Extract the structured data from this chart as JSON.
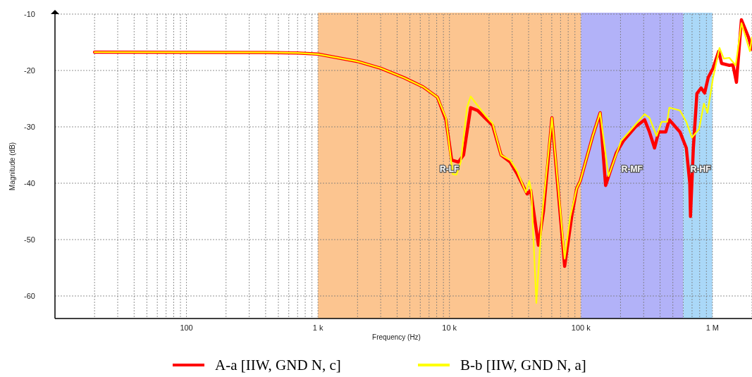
{
  "chart_data": {
    "type": "line",
    "xlabel": "Frequency (Hz)",
    "ylabel": "Magnitude (dB)",
    "log": "x",
    "xlim": [
      10,
      2000000
    ],
    "ylim": [
      -64,
      -10
    ],
    "xticks": [
      {
        "value": 20,
        "label": null
      },
      {
        "value": 30,
        "label": null
      },
      {
        "value": 40,
        "label": null
      },
      {
        "value": 50,
        "label": null
      },
      {
        "value": 60,
        "label": null
      },
      {
        "value": 70,
        "label": null
      },
      {
        "value": 80,
        "label": null
      },
      {
        "value": 90,
        "label": null
      },
      {
        "value": 100,
        "label": "100"
      },
      {
        "value": 200,
        "label": null
      },
      {
        "value": 300,
        "label": null
      },
      {
        "value": 400,
        "label": null
      },
      {
        "value": 500,
        "label": null
      },
      {
        "value": 600,
        "label": null
      },
      {
        "value": 700,
        "label": null
      },
      {
        "value": 800,
        "label": null
      },
      {
        "value": 900,
        "label": null
      },
      {
        "value": 1000,
        "label": "1 k"
      },
      {
        "value": 2000,
        "label": null
      },
      {
        "value": 3000,
        "label": null
      },
      {
        "value": 4000,
        "label": null
      },
      {
        "value": 5000,
        "label": null
      },
      {
        "value": 6000,
        "label": null
      },
      {
        "value": 7000,
        "label": null
      },
      {
        "value": 8000,
        "label": null
      },
      {
        "value": 9000,
        "label": null
      },
      {
        "value": 10000,
        "label": "10 k"
      },
      {
        "value": 20000,
        "label": null
      },
      {
        "value": 30000,
        "label": null
      },
      {
        "value": 40000,
        "label": null
      },
      {
        "value": 50000,
        "label": null
      },
      {
        "value": 60000,
        "label": null
      },
      {
        "value": 70000,
        "label": null
      },
      {
        "value": 80000,
        "label": null
      },
      {
        "value": 90000,
        "label": null
      },
      {
        "value": 100000,
        "label": "100 k"
      },
      {
        "value": 200000,
        "label": null
      },
      {
        "value": 300000,
        "label": null
      },
      {
        "value": 400000,
        "label": null
      },
      {
        "value": 500000,
        "label": null
      },
      {
        "value": 600000,
        "label": null
      },
      {
        "value": 700000,
        "label": null
      },
      {
        "value": 800000,
        "label": null
      },
      {
        "value": 900000,
        "label": null
      },
      {
        "value": 1000000,
        "label": "1 M"
      },
      {
        "value": 2000000,
        "label": null
      }
    ],
    "yticks": [
      -10,
      -20,
      -30,
      -40,
      -50,
      -60
    ],
    "grid": true,
    "legend": "bottom",
    "line_style": "solid",
    "bands": [
      {
        "axis": "x",
        "from": 1000,
        "to": 100000,
        "label": "R-LF",
        "color": "#fcc590"
      },
      {
        "axis": "x",
        "from": 100000,
        "to": 600000,
        "label": "R-MF",
        "color": "#b2b2f8"
      },
      {
        "axis": "x",
        "from": 600000,
        "to": 1000000,
        "label": "R-HF",
        "color": "#aad8f8"
      }
    ],
    "series": [
      {
        "name": "A-a [IIW, GND N, c]",
        "color": "#ff0000",
        "x": [
          20,
          400,
          700,
          1000,
          2000,
          3000,
          4530,
          6300,
          8100,
          9400,
          10400,
          11700,
          12800,
          14500,
          16400,
          18600,
          21300,
          24700,
          29000,
          32800,
          39000,
          41500,
          47500,
          51900,
          60200,
          75200,
          85100,
          92900,
          98900,
          123000,
          140000,
          154000,
          186000,
          210000,
          260000,
          305000,
          332000,
          363000,
          390000,
          442000,
          470000,
          566000,
          633000,
          673000,
          681000,
          716000,
          762000,
          820000,
          873000,
          929000,
          1012000,
          1117000,
          1175000,
          1346000,
          1432000,
          1523000,
          1662000,
          1880000,
          1995000
        ],
        "values": [
          -16.75,
          -16.8,
          -16.9,
          -17.1,
          -18.4,
          -19.6,
          -21.3,
          -22.9,
          -24.75,
          -28.75,
          -35.9,
          -36.25,
          -35,
          -26.6,
          -27.1,
          -28.4,
          -29.75,
          -35,
          -36.25,
          -38.4,
          -41.9,
          -41.25,
          -51,
          -45,
          -28.4,
          -54.75,
          -45.9,
          -40.9,
          -39.6,
          -31.6,
          -27.5,
          -40.4,
          -34.6,
          -32.5,
          -30,
          -28.75,
          -30.9,
          -33.75,
          -30.9,
          -30.9,
          -28.75,
          -30.9,
          -33.75,
          -40,
          -45.9,
          -33.75,
          -24.1,
          -23.1,
          -24,
          -21.25,
          -19.6,
          -16.6,
          -18.75,
          -19.1,
          -19,
          -22.1,
          -11,
          -14.1,
          -16.25
        ]
      },
      {
        "name": "B-b [IIW, GND N, a]",
        "color": "#ffff00",
        "x": [
          20,
          400,
          700,
          1000,
          2000,
          3000,
          4530,
          6300,
          8100,
          9400,
          10600,
          11300,
          12200,
          13600,
          14500,
          16400,
          18600,
          21300,
          24700,
          29000,
          32800,
          38100,
          40500,
          42000,
          45800,
          50600,
          60200,
          75200,
          83000,
          92900,
          98900,
          123000,
          140000,
          162000,
          202000,
          260000,
          305000,
          332000,
          376000,
          410000,
          453000,
          470000,
          566000,
          633000,
          698000,
          791000,
          862000,
          917000,
          1012000,
          1132000,
          1220000,
          1346000,
          1503000,
          1662000,
          1928000,
          2000000
        ],
        "values": [
          -16.75,
          -16.8,
          -16.9,
          -17.1,
          -18.4,
          -19.6,
          -21.3,
          -22.9,
          -24.75,
          -28.4,
          -38.4,
          -38.5,
          -36.25,
          -26.6,
          -24.6,
          -26.25,
          -27.9,
          -29.4,
          -35,
          -35.9,
          -37.9,
          -41.6,
          -39.6,
          -41.6,
          -61.25,
          -45.9,
          -28.4,
          -53.4,
          -45.9,
          -40.9,
          -39.6,
          -31.6,
          -27.5,
          -38.75,
          -32.5,
          -29.6,
          -27.75,
          -28.4,
          -31.6,
          -29.1,
          -29.1,
          -26.6,
          -27.1,
          -29.1,
          -31.9,
          -30.4,
          -25.9,
          -27.5,
          -21.25,
          -16,
          -17.9,
          -17.75,
          -19.1,
          -11.6,
          -16.6,
          -14.1
        ]
      }
    ]
  }
}
